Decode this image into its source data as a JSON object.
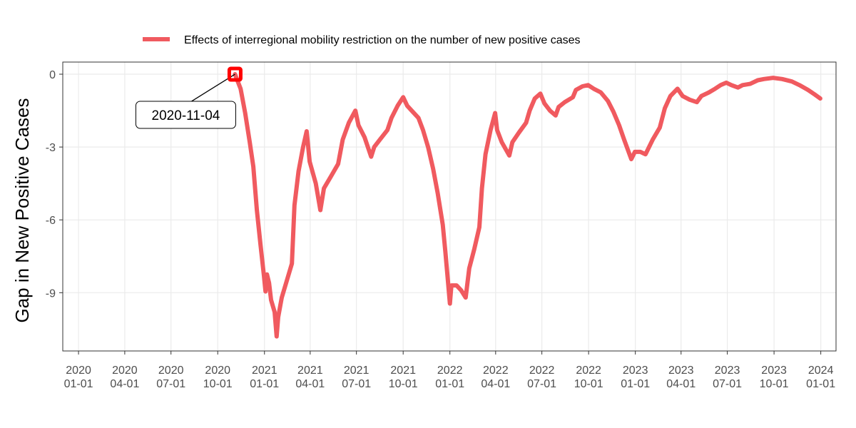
{
  "chart_data": {
    "type": "line",
    "title": "",
    "xlabel": "",
    "ylabel": "Gap in New Positive Cases",
    "xlim": [
      "2019-12-01",
      "2024-01-31"
    ],
    "ylim": [
      -11.4,
      0.5
    ],
    "grid": true,
    "legend_position": "top",
    "x_ticks": [
      {
        "date": "2020-01-01",
        "line1": "2020",
        "line2": "01-01"
      },
      {
        "date": "2020-04-01",
        "line1": "2020",
        "line2": "04-01"
      },
      {
        "date": "2020-07-01",
        "line1": "2020",
        "line2": "07-01"
      },
      {
        "date": "2020-10-01",
        "line1": "2020",
        "line2": "10-01"
      },
      {
        "date": "2021-01-01",
        "line1": "2021",
        "line2": "01-01"
      },
      {
        "date": "2021-04-01",
        "line1": "2021",
        "line2": "04-01"
      },
      {
        "date": "2021-07-01",
        "line1": "2021",
        "line2": "07-01"
      },
      {
        "date": "2021-10-01",
        "line1": "2021",
        "line2": "10-01"
      },
      {
        "date": "2022-01-01",
        "line1": "2022",
        "line2": "01-01"
      },
      {
        "date": "2022-04-01",
        "line1": "2022",
        "line2": "04-01"
      },
      {
        "date": "2022-07-01",
        "line1": "2022",
        "line2": "07-01"
      },
      {
        "date": "2022-10-01",
        "line1": "2022",
        "line2": "10-01"
      },
      {
        "date": "2023-01-01",
        "line1": "2023",
        "line2": "01-01"
      },
      {
        "date": "2023-04-01",
        "line1": "2023",
        "line2": "04-01"
      },
      {
        "date": "2023-07-01",
        "line1": "2023",
        "line2": "07-01"
      },
      {
        "date": "2023-10-01",
        "line1": "2023",
        "line2": "10-01"
      },
      {
        "date": "2024-01-01",
        "line1": "2024",
        "line2": "01-01"
      }
    ],
    "y_ticks": [
      {
        "value": 0,
        "label": "0"
      },
      {
        "value": -3,
        "label": "-3"
      },
      {
        "value": -6,
        "label": "-6"
      },
      {
        "value": -9,
        "label": "-9"
      }
    ],
    "series": [
      {
        "name": "Effects of interregional mobility restriction on the number of new positive cases",
        "color": "#F05A5F",
        "points": [
          [
            "2020-11-04",
            0.0
          ],
          [
            "2020-11-15",
            -0.6
          ],
          [
            "2020-11-24",
            -1.6
          ],
          [
            "2020-12-03",
            -2.8
          ],
          [
            "2020-12-10",
            -3.8
          ],
          [
            "2020-12-17",
            -5.6
          ],
          [
            "2020-12-24",
            -7.0
          ],
          [
            "2020-12-31",
            -8.3
          ],
          [
            "2021-01-03",
            -8.95
          ],
          [
            "2021-01-06",
            -8.25
          ],
          [
            "2021-01-10",
            -8.6
          ],
          [
            "2021-01-14",
            -9.3
          ],
          [
            "2021-01-21",
            -9.8
          ],
          [
            "2021-01-25",
            -10.8
          ],
          [
            "2021-01-28",
            -10.0
          ],
          [
            "2021-02-04",
            -9.2
          ],
          [
            "2021-02-14",
            -8.5
          ],
          [
            "2021-02-24",
            -7.8
          ],
          [
            "2021-03-01",
            -5.4
          ],
          [
            "2021-03-09",
            -4.0
          ],
          [
            "2021-03-18",
            -3.0
          ],
          [
            "2021-03-25",
            -2.35
          ],
          [
            "2021-03-31",
            -3.6
          ],
          [
            "2021-04-12",
            -4.5
          ],
          [
            "2021-04-21",
            -5.6
          ],
          [
            "2021-04-28",
            -4.7
          ],
          [
            "2021-05-12",
            -4.2
          ],
          [
            "2021-05-26",
            -3.7
          ],
          [
            "2021-06-04",
            -2.7
          ],
          [
            "2021-06-16",
            -2.0
          ],
          [
            "2021-06-29",
            -1.5
          ],
          [
            "2021-07-05",
            -2.1
          ],
          [
            "2021-07-17",
            -2.6
          ],
          [
            "2021-07-30",
            -3.4
          ],
          [
            "2021-08-05",
            -3.0
          ],
          [
            "2021-08-16",
            -2.7
          ],
          [
            "2021-08-31",
            -2.3
          ],
          [
            "2021-09-08",
            -1.8
          ],
          [
            "2021-09-20",
            -1.3
          ],
          [
            "2021-10-01",
            -0.95
          ],
          [
            "2021-10-09",
            -1.3
          ],
          [
            "2021-10-20",
            -1.55
          ],
          [
            "2021-10-31",
            -1.8
          ],
          [
            "2021-11-09",
            -2.3
          ],
          [
            "2021-11-19",
            -3.0
          ],
          [
            "2021-11-29",
            -3.9
          ],
          [
            "2021-12-08",
            -4.9
          ],
          [
            "2021-12-18",
            -6.2
          ],
          [
            "2021-12-23",
            -7.3
          ],
          [
            "2021-12-28",
            -8.5
          ],
          [
            "2022-01-01",
            -9.45
          ],
          [
            "2022-01-04",
            -8.7
          ],
          [
            "2022-01-14",
            -8.7
          ],
          [
            "2022-01-23",
            -8.9
          ],
          [
            "2022-02-01",
            -9.2
          ],
          [
            "2022-02-08",
            -8.0
          ],
          [
            "2022-02-18",
            -7.2
          ],
          [
            "2022-02-28",
            -6.3
          ],
          [
            "2022-03-05",
            -4.7
          ],
          [
            "2022-03-12",
            -3.3
          ],
          [
            "2022-03-22",
            -2.3
          ],
          [
            "2022-03-31",
            -1.6
          ],
          [
            "2022-04-04",
            -2.3
          ],
          [
            "2022-04-13",
            -2.8
          ],
          [
            "2022-04-28",
            -3.35
          ],
          [
            "2022-05-04",
            -2.8
          ],
          [
            "2022-05-17",
            -2.4
          ],
          [
            "2022-05-31",
            -2.0
          ],
          [
            "2022-06-07",
            -1.5
          ],
          [
            "2022-06-17",
            -1.0
          ],
          [
            "2022-06-28",
            -0.8
          ],
          [
            "2022-07-06",
            -1.2
          ],
          [
            "2022-07-17",
            -1.5
          ],
          [
            "2022-07-28",
            -1.7
          ],
          [
            "2022-08-03",
            -1.35
          ],
          [
            "2022-08-15",
            -1.15
          ],
          [
            "2022-08-31",
            -0.95
          ],
          [
            "2022-09-06",
            -0.65
          ],
          [
            "2022-09-19",
            -0.5
          ],
          [
            "2022-09-30",
            -0.45
          ],
          [
            "2022-10-11",
            -0.6
          ],
          [
            "2022-10-25",
            -0.75
          ],
          [
            "2022-11-08",
            -1.1
          ],
          [
            "2022-11-19",
            -1.55
          ],
          [
            "2022-11-30",
            -2.1
          ],
          [
            "2022-12-10",
            -2.7
          ],
          [
            "2022-12-24",
            -3.5
          ],
          [
            "2022-12-31",
            -3.2
          ],
          [
            "2023-01-11",
            -3.2
          ],
          [
            "2023-01-21",
            -3.3
          ],
          [
            "2023-02-04",
            -2.7
          ],
          [
            "2023-02-18",
            -2.2
          ],
          [
            "2023-02-28",
            -1.4
          ],
          [
            "2023-03-11",
            -0.9
          ],
          [
            "2023-03-25",
            -0.6
          ],
          [
            "2023-04-04",
            -0.9
          ],
          [
            "2023-04-18",
            -1.05
          ],
          [
            "2023-05-02",
            -1.15
          ],
          [
            "2023-05-11",
            -0.9
          ],
          [
            "2023-05-26",
            -0.75
          ],
          [
            "2023-06-07",
            -0.6
          ],
          [
            "2023-06-18",
            -0.45
          ],
          [
            "2023-06-29",
            -0.35
          ],
          [
            "2023-07-09",
            -0.45
          ],
          [
            "2023-07-22",
            -0.55
          ],
          [
            "2023-07-31",
            -0.45
          ],
          [
            "2023-08-15",
            -0.4
          ],
          [
            "2023-08-30",
            -0.25
          ],
          [
            "2023-09-11",
            -0.2
          ],
          [
            "2023-09-29",
            -0.15
          ],
          [
            "2023-10-17",
            -0.2
          ],
          [
            "2023-11-05",
            -0.3
          ],
          [
            "2023-11-20",
            -0.45
          ],
          [
            "2023-12-07",
            -0.65
          ],
          [
            "2023-12-21",
            -0.85
          ],
          [
            "2023-12-31",
            -1.0
          ]
        ]
      }
    ],
    "annotation": {
      "label": "2020-11-04",
      "date": "2020-11-04",
      "value": 0.0,
      "marker_color": "#FF0000"
    }
  }
}
